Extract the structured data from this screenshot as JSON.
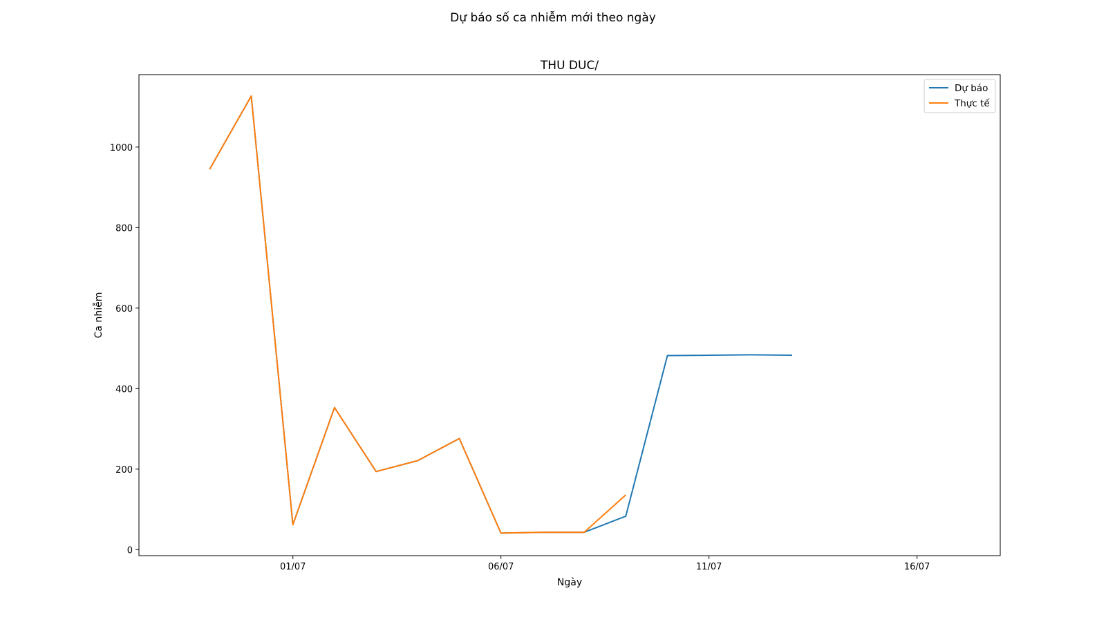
{
  "figure": {
    "suptitle": "Dự báo số ca nhiễm mới theo ngày"
  },
  "chart_data": {
    "type": "line",
    "title": "THU DUC/",
    "xlabel": "Ngày",
    "ylabel": "Ca nhiễm",
    "x_axis": {
      "start_date": "2021-06-28",
      "range_days": [
        -0.7,
        20.0
      ],
      "ticks": [
        {
          "day": 3,
          "label": "01/07"
        },
        {
          "day": 8,
          "label": "06/07"
        },
        {
          "day": 13,
          "label": "11/07"
        },
        {
          "day": 18,
          "label": "16/07"
        }
      ]
    },
    "y_axis": {
      "range": [
        -15,
        1180
      ],
      "ticks": [
        {
          "value": 0,
          "label": "0"
        },
        {
          "value": 200,
          "label": "200"
        },
        {
          "value": 400,
          "label": "400"
        },
        {
          "value": 600,
          "label": "600"
        },
        {
          "value": 800,
          "label": "800"
        },
        {
          "value": 1000,
          "label": "1000"
        }
      ]
    },
    "grid": false,
    "legend_position": "top-right",
    "series": [
      {
        "name": "Dự báo",
        "color": "#1f77b4",
        "points": [
          {
            "date": "2021-06-29",
            "value": 945
          },
          {
            "date": "2021-06-30",
            "value": 1127
          },
          {
            "date": "2021-07-01",
            "value": 62
          },
          {
            "date": "2021-07-02",
            "value": 353
          },
          {
            "date": "2021-07-03",
            "value": 194
          },
          {
            "date": "2021-07-04",
            "value": 221
          },
          {
            "date": "2021-07-05",
            "value": 276
          },
          {
            "date": "2021-07-06",
            "value": 41
          },
          {
            "date": "2021-07-07",
            "value": 43
          },
          {
            "date": "2021-07-08",
            "value": 43
          },
          {
            "date": "2021-07-09",
            "value": 83
          },
          {
            "date": "2021-07-10",
            "value": 482
          },
          {
            "date": "2021-07-11",
            "value": 483
          },
          {
            "date": "2021-07-12",
            "value": 484
          },
          {
            "date": "2021-07-13",
            "value": 483
          }
        ]
      },
      {
        "name": "Thực tế",
        "color": "#ff7f0e",
        "points": [
          {
            "date": "2021-06-29",
            "value": 945
          },
          {
            "date": "2021-06-30",
            "value": 1127
          },
          {
            "date": "2021-07-01",
            "value": 62
          },
          {
            "date": "2021-07-02",
            "value": 353
          },
          {
            "date": "2021-07-03",
            "value": 194
          },
          {
            "date": "2021-07-04",
            "value": 221
          },
          {
            "date": "2021-07-05",
            "value": 276
          },
          {
            "date": "2021-07-06",
            "value": 41
          },
          {
            "date": "2021-07-07",
            "value": 43
          },
          {
            "date": "2021-07-08",
            "value": 43
          },
          {
            "date": "2021-07-09",
            "value": 136
          }
        ]
      }
    ]
  }
}
